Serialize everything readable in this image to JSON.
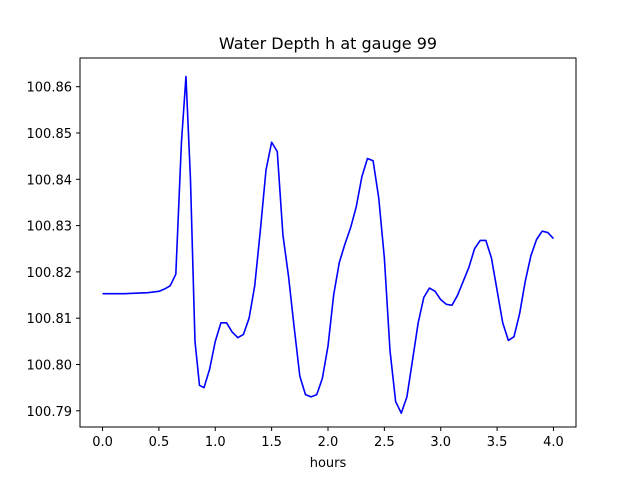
{
  "chart_data": {
    "type": "line",
    "title": "Water Depth h at gauge 99",
    "xlabel": "hours",
    "ylabel": "",
    "xlim": [
      -0.2,
      4.2
    ],
    "ylim": [
      100.7865,
      100.8662
    ],
    "grid": false,
    "legend": "none",
    "x_ticks": [
      0.0,
      0.5,
      1.0,
      1.5,
      2.0,
      2.5,
      3.0,
      3.5,
      4.0
    ],
    "x_tick_labels": [
      "0.0",
      "0.5",
      "1.0",
      "1.5",
      "2.0",
      "2.5",
      "3.0",
      "3.5",
      "4.0"
    ],
    "y_ticks": [
      100.79,
      100.8,
      100.81,
      100.82,
      100.83,
      100.84,
      100.85,
      100.86
    ],
    "y_tick_labels": [
      "100.79",
      "100.80",
      "100.81",
      "100.82",
      "100.83",
      "100.84",
      "100.85",
      "100.86"
    ],
    "series": [
      {
        "color": "#0000ff",
        "x": [
          0.0,
          0.2,
          0.4,
          0.5,
          0.55,
          0.6,
          0.65,
          0.7,
          0.74,
          0.78,
          0.82,
          0.86,
          0.9,
          0.95,
          1.0,
          1.05,
          1.1,
          1.15,
          1.2,
          1.25,
          1.3,
          1.35,
          1.4,
          1.45,
          1.5,
          1.55,
          1.6,
          1.65,
          1.7,
          1.75,
          1.8,
          1.85,
          1.9,
          1.95,
          2.0,
          2.05,
          2.1,
          2.15,
          2.2,
          2.25,
          2.3,
          2.35,
          2.4,
          2.45,
          2.5,
          2.55,
          2.6,
          2.65,
          2.7,
          2.75,
          2.8,
          2.85,
          2.9,
          2.95,
          3.0,
          3.05,
          3.1,
          3.15,
          3.2,
          3.25,
          3.3,
          3.35,
          3.4,
          3.45,
          3.5,
          3.55,
          3.6,
          3.65,
          3.7,
          3.75,
          3.8,
          3.85,
          3.9,
          3.95,
          4.0
        ],
        "y": [
          100.8153,
          100.8153,
          100.8155,
          100.8158,
          100.8163,
          100.817,
          100.8195,
          100.848,
          100.8622,
          100.84,
          100.805,
          100.7955,
          100.795,
          100.799,
          100.805,
          100.809,
          100.809,
          100.807,
          100.8058,
          100.8065,
          100.81,
          100.817,
          100.829,
          100.842,
          100.848,
          100.846,
          100.828,
          100.819,
          100.808,
          100.7975,
          100.7935,
          100.793,
          100.7935,
          100.797,
          100.804,
          100.815,
          100.822,
          100.826,
          100.8295,
          100.834,
          100.8405,
          100.8445,
          100.844,
          100.836,
          100.823,
          100.803,
          100.792,
          100.7895,
          100.793,
          100.801,
          100.809,
          100.8145,
          100.8165,
          100.8158,
          100.814,
          100.813,
          100.8128,
          100.815,
          100.818,
          100.821,
          100.825,
          100.8268,
          100.8268,
          100.823,
          100.816,
          100.809,
          100.8052,
          100.806,
          100.811,
          100.818,
          100.8235,
          100.827,
          100.8288,
          100.8285,
          100.8272
        ]
      }
    ]
  }
}
